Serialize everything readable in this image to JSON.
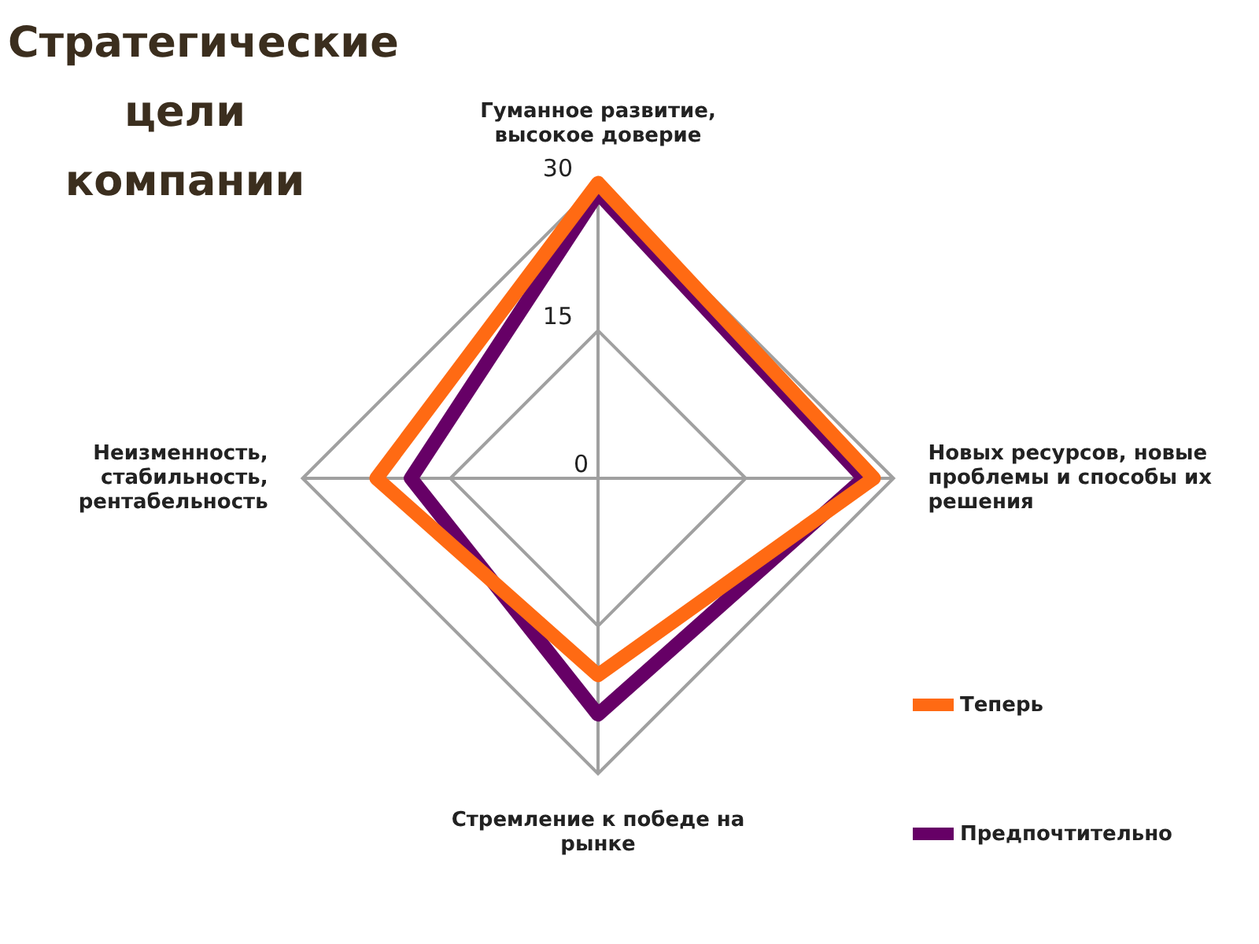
{
  "chart_data": {
    "type": "radar",
    "title": "Стратегические цели компании",
    "categories": [
      "Гуманное развитие, высокое доверие",
      "Новых ресурсов, новые проблемы и способы их решения",
      "Стремление к победе на рынке",
      "Неизменность, стабильность, рентабельность"
    ],
    "series": [
      {
        "name": "Теперь",
        "color": "#ff6a13",
        "values": [
          30,
          28,
          20,
          22.5
        ]
      },
      {
        "name": "Предпочтительно",
        "color": "#660066",
        "values": [
          29,
          27,
          24,
          19
        ]
      }
    ],
    "ylim": [
      0,
      30
    ],
    "yticks": [
      0,
      15,
      30
    ],
    "grid": true,
    "legend": "bottom right",
    "marker": "none"
  }
}
